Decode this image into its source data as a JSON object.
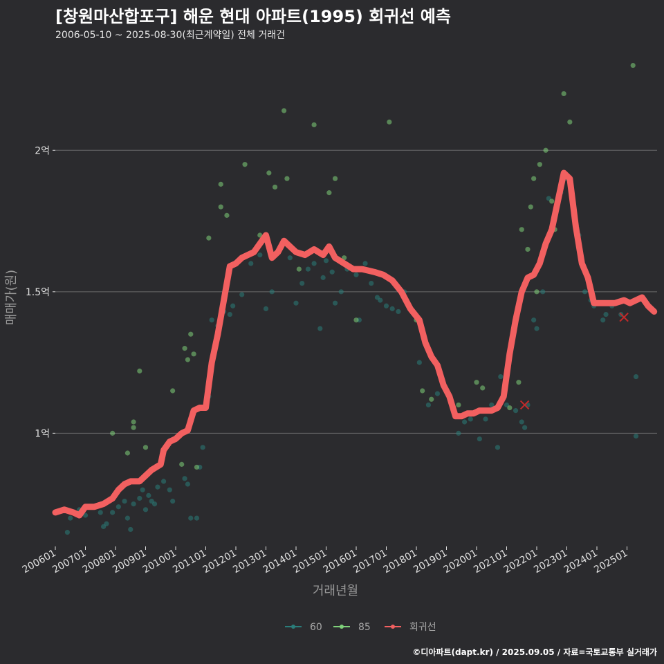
{
  "header": {
    "title": "[창원마산합포구] 해운 현대 아파트(1995) 회귀선 예측",
    "subtitle": "2006-05-10 ~ 2025-08-30(최근계약일) 전체 거래건"
  },
  "caption": "©디아파트(dapt.kr) / 2025.09.05 / 자료=국토교통부 실거래가",
  "colors": {
    "background": "#2b2b2e",
    "grid": "#6b6b6b",
    "series_60": "#2a7d7a",
    "series_85": "#7fd17a",
    "regression": "#f26060"
  },
  "chart_data": {
    "type": "scatter",
    "title": "[창원마산합포구] 해운 현대 아파트(1995) 회귀선 예측",
    "xlabel": "거래년월",
    "ylabel": "매매가(원)",
    "ylim": [
      0.6,
      2.36
    ],
    "y_ticks": [
      {
        "value": 1.0,
        "label": "1억"
      },
      {
        "value": 1.5,
        "label": "1.5억"
      },
      {
        "value": 2.0,
        "label": "2억"
      }
    ],
    "x_ticks": [
      "200601",
      "200701",
      "200801",
      "200901",
      "201001",
      "201101",
      "201201",
      "201301",
      "201401",
      "201501",
      "201601",
      "201701",
      "201801",
      "201901",
      "202001",
      "202101",
      "202201",
      "202301",
      "202401",
      "202501"
    ],
    "x_range": [
      2006.0,
      2026.0
    ],
    "legend": [
      {
        "key": "60",
        "label": "60"
      },
      {
        "key": "85",
        "label": "85"
      },
      {
        "key": "reg",
        "label": "회귀선"
      }
    ],
    "series": [
      {
        "name": "60",
        "points": [
          [
            2006.4,
            0.65
          ],
          [
            2006.5,
            0.7
          ],
          [
            2006.8,
            0.73
          ],
          [
            2007.0,
            0.71
          ],
          [
            2007.3,
            0.74
          ],
          [
            2007.5,
            0.72
          ],
          [
            2007.6,
            0.67
          ],
          [
            2007.7,
            0.68
          ],
          [
            2007.9,
            0.72
          ],
          [
            2008.1,
            0.74
          ],
          [
            2008.3,
            0.76
          ],
          [
            2008.4,
            0.7
          ],
          [
            2008.5,
            0.66
          ],
          [
            2008.6,
            0.75
          ],
          [
            2008.8,
            0.77
          ],
          [
            2008.9,
            0.8
          ],
          [
            2009.0,
            0.73
          ],
          [
            2009.1,
            0.78
          ],
          [
            2009.2,
            0.76
          ],
          [
            2009.3,
            0.75
          ],
          [
            2009.4,
            0.81
          ],
          [
            2009.6,
            0.83
          ],
          [
            2009.8,
            0.8
          ],
          [
            2009.9,
            0.76
          ],
          [
            2010.3,
            0.84
          ],
          [
            2010.4,
            0.82
          ],
          [
            2010.5,
            0.7
          ],
          [
            2010.7,
            0.7
          ],
          [
            2010.8,
            0.88
          ],
          [
            2010.9,
            0.95
          ],
          [
            2011.1,
            1.13
          ],
          [
            2011.2,
            1.4
          ],
          [
            2011.4,
            1.38
          ],
          [
            2011.6,
            1.43
          ],
          [
            2011.8,
            1.42
          ],
          [
            2011.9,
            1.45
          ],
          [
            2012.2,
            1.49
          ],
          [
            2012.5,
            1.6
          ],
          [
            2012.8,
            1.63
          ],
          [
            2013.0,
            1.44
          ],
          [
            2013.2,
            1.5
          ],
          [
            2013.5,
            1.66
          ],
          [
            2013.8,
            1.62
          ],
          [
            2014.0,
            1.46
          ],
          [
            2014.2,
            1.53
          ],
          [
            2014.4,
            1.58
          ],
          [
            2014.6,
            1.6
          ],
          [
            2014.8,
            1.37
          ],
          [
            2014.9,
            1.55
          ],
          [
            2015.0,
            1.61
          ],
          [
            2015.2,
            1.57
          ],
          [
            2015.3,
            1.46
          ],
          [
            2015.5,
            1.5
          ],
          [
            2015.7,
            1.58
          ],
          [
            2016.0,
            1.56
          ],
          [
            2016.1,
            1.4
          ],
          [
            2016.3,
            1.6
          ],
          [
            2016.5,
            1.53
          ],
          [
            2016.7,
            1.48
          ],
          [
            2016.8,
            1.47
          ],
          [
            2017.0,
            1.45
          ],
          [
            2017.2,
            1.44
          ],
          [
            2017.4,
            1.43
          ],
          [
            2017.6,
            1.5
          ],
          [
            2018.1,
            1.25
          ],
          [
            2018.4,
            1.1
          ],
          [
            2018.7,
            1.14
          ],
          [
            2019.4,
            1.0
          ],
          [
            2019.6,
            1.04
          ],
          [
            2019.8,
            1.05
          ],
          [
            2020.1,
            0.98
          ],
          [
            2020.3,
            1.05
          ],
          [
            2020.5,
            1.1
          ],
          [
            2020.7,
            0.95
          ],
          [
            2020.8,
            1.2
          ],
          [
            2021.0,
            1.1
          ],
          [
            2021.3,
            1.08
          ],
          [
            2021.5,
            1.04
          ],
          [
            2021.6,
            1.02
          ],
          [
            2021.7,
            1.1
          ],
          [
            2021.9,
            1.4
          ],
          [
            2022.0,
            1.37
          ],
          [
            2022.2,
            1.5
          ],
          [
            2022.4,
            1.83
          ],
          [
            2022.6,
            1.78
          ],
          [
            2022.8,
            1.85
          ],
          [
            2023.0,
            1.9
          ],
          [
            2023.4,
            1.7
          ],
          [
            2023.6,
            1.5
          ],
          [
            2023.8,
            1.47
          ],
          [
            2023.9,
            1.45
          ],
          [
            2024.2,
            1.4
          ],
          [
            2024.3,
            1.42
          ],
          [
            2024.5,
            1.45
          ],
          [
            2024.8,
            1.42
          ],
          [
            2025.3,
            1.2
          ],
          [
            2025.3,
            0.99
          ]
        ]
      },
      {
        "name": "85",
        "points": [
          [
            2007.9,
            1.0
          ],
          [
            2008.4,
            0.93
          ],
          [
            2008.6,
            1.04
          ],
          [
            2008.6,
            1.02
          ],
          [
            2008.8,
            1.22
          ],
          [
            2009.0,
            0.95
          ],
          [
            2009.9,
            1.15
          ],
          [
            2010.2,
            0.89
          ],
          [
            2010.3,
            1.3
          ],
          [
            2010.4,
            1.26
          ],
          [
            2010.5,
            1.35
          ],
          [
            2010.6,
            1.28
          ],
          [
            2010.7,
            0.88
          ],
          [
            2011.1,
            1.69
          ],
          [
            2011.5,
            1.88
          ],
          [
            2011.5,
            1.8
          ],
          [
            2011.7,
            1.77
          ],
          [
            2012.3,
            1.95
          ],
          [
            2012.8,
            1.7
          ],
          [
            2013.1,
            1.92
          ],
          [
            2013.3,
            1.87
          ],
          [
            2013.6,
            2.14
          ],
          [
            2013.7,
            1.9
          ],
          [
            2014.1,
            1.58
          ],
          [
            2014.6,
            2.09
          ],
          [
            2015.1,
            1.85
          ],
          [
            2015.3,
            1.9
          ],
          [
            2015.6,
            1.62
          ],
          [
            2016.0,
            1.4
          ],
          [
            2017.1,
            2.1
          ],
          [
            2018.0,
            1.4
          ],
          [
            2018.2,
            1.15
          ],
          [
            2018.5,
            1.12
          ],
          [
            2019.4,
            1.1
          ],
          [
            2020.0,
            1.18
          ],
          [
            2020.2,
            1.16
          ],
          [
            2021.1,
            1.09
          ],
          [
            2021.4,
            1.18
          ],
          [
            2021.5,
            1.72
          ],
          [
            2021.7,
            1.65
          ],
          [
            2021.8,
            1.8
          ],
          [
            2021.9,
            1.9
          ],
          [
            2022.0,
            1.5
          ],
          [
            2022.1,
            1.95
          ],
          [
            2022.3,
            2.0
          ],
          [
            2022.5,
            1.82
          ],
          [
            2022.6,
            1.72
          ],
          [
            2022.9,
            2.2
          ],
          [
            2023.1,
            2.1
          ],
          [
            2025.2,
            2.3
          ]
        ]
      }
    ],
    "regression": [
      [
        2006.0,
        0.72
      ],
      [
        2006.3,
        0.73
      ],
      [
        2006.6,
        0.72
      ],
      [
        2006.8,
        0.71
      ],
      [
        2007.0,
        0.74
      ],
      [
        2007.3,
        0.74
      ],
      [
        2007.6,
        0.75
      ],
      [
        2007.9,
        0.77
      ],
      [
        2008.1,
        0.8
      ],
      [
        2008.3,
        0.82
      ],
      [
        2008.5,
        0.83
      ],
      [
        2008.8,
        0.83
      ],
      [
        2009.0,
        0.85
      ],
      [
        2009.2,
        0.87
      ],
      [
        2009.5,
        0.89
      ],
      [
        2009.6,
        0.94
      ],
      [
        2009.8,
        0.97
      ],
      [
        2010.0,
        0.98
      ],
      [
        2010.2,
        1.0
      ],
      [
        2010.4,
        1.01
      ],
      [
        2010.6,
        1.08
      ],
      [
        2010.8,
        1.09
      ],
      [
        2011.0,
        1.09
      ],
      [
        2011.2,
        1.25
      ],
      [
        2011.4,
        1.35
      ],
      [
        2011.6,
        1.47
      ],
      [
        2011.8,
        1.59
      ],
      [
        2012.0,
        1.6
      ],
      [
        2012.2,
        1.62
      ],
      [
        2012.4,
        1.63
      ],
      [
        2012.6,
        1.64
      ],
      [
        2012.8,
        1.67
      ],
      [
        2013.0,
        1.7
      ],
      [
        2013.2,
        1.62
      ],
      [
        2013.4,
        1.64
      ],
      [
        2013.6,
        1.68
      ],
      [
        2013.8,
        1.66
      ],
      [
        2014.0,
        1.64
      ],
      [
        2014.3,
        1.63
      ],
      [
        2014.6,
        1.65
      ],
      [
        2014.9,
        1.63
      ],
      [
        2015.1,
        1.66
      ],
      [
        2015.3,
        1.62
      ],
      [
        2015.6,
        1.6
      ],
      [
        2015.9,
        1.58
      ],
      [
        2016.2,
        1.58
      ],
      [
        2016.6,
        1.57
      ],
      [
        2016.9,
        1.56
      ],
      [
        2017.2,
        1.54
      ],
      [
        2017.5,
        1.5
      ],
      [
        2017.8,
        1.44
      ],
      [
        2018.1,
        1.4
      ],
      [
        2018.3,
        1.32
      ],
      [
        2018.5,
        1.27
      ],
      [
        2018.7,
        1.24
      ],
      [
        2018.9,
        1.17
      ],
      [
        2019.1,
        1.13
      ],
      [
        2019.3,
        1.06
      ],
      [
        2019.5,
        1.06
      ],
      [
        2019.7,
        1.07
      ],
      [
        2019.9,
        1.07
      ],
      [
        2020.1,
        1.08
      ],
      [
        2020.3,
        1.08
      ],
      [
        2020.5,
        1.08
      ],
      [
        2020.7,
        1.09
      ],
      [
        2020.9,
        1.13
      ],
      [
        2021.1,
        1.28
      ],
      [
        2021.3,
        1.4
      ],
      [
        2021.5,
        1.5
      ],
      [
        2021.7,
        1.55
      ],
      [
        2021.9,
        1.56
      ],
      [
        2022.1,
        1.6
      ],
      [
        2022.3,
        1.67
      ],
      [
        2022.5,
        1.72
      ],
      [
        2022.7,
        1.82
      ],
      [
        2022.9,
        1.92
      ],
      [
        2023.1,
        1.9
      ],
      [
        2023.3,
        1.73
      ],
      [
        2023.5,
        1.6
      ],
      [
        2023.7,
        1.55
      ],
      [
        2023.9,
        1.46
      ],
      [
        2024.1,
        1.46
      ],
      [
        2024.3,
        1.46
      ],
      [
        2024.6,
        1.46
      ],
      [
        2024.9,
        1.47
      ],
      [
        2025.1,
        1.46
      ],
      [
        2025.3,
        1.47
      ],
      [
        2025.5,
        1.48
      ],
      [
        2025.7,
        1.45
      ],
      [
        2025.9,
        1.43
      ]
    ],
    "predicted": [
      [
        2021.6,
        1.1
      ],
      [
        2024.9,
        1.41
      ]
    ]
  }
}
